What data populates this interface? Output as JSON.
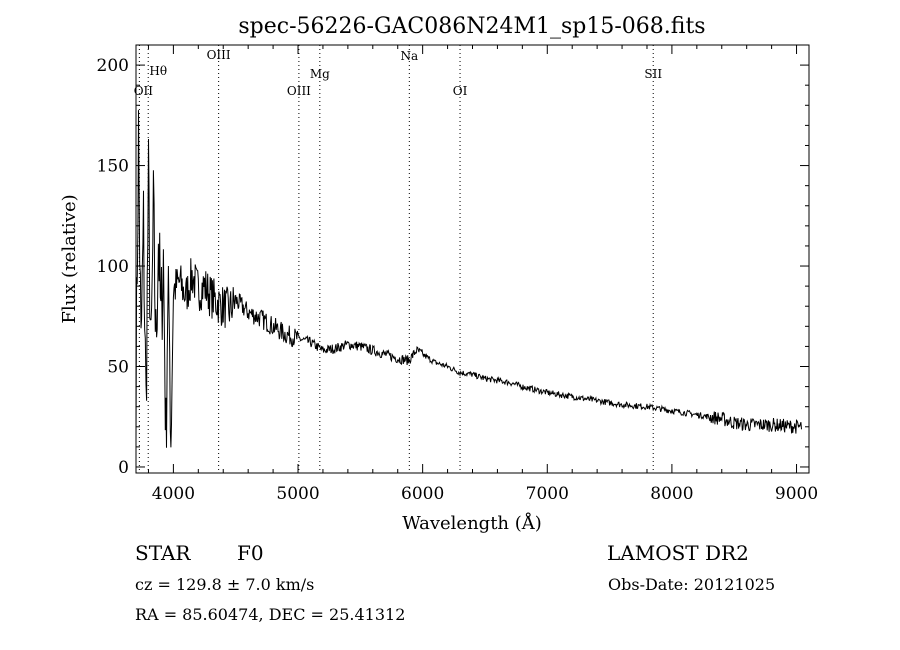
{
  "chart_data": {
    "type": "line",
    "title": "spec-56226-GAC086N24M1_sp15-068.fits",
    "xlabel": "Wavelength (Å)",
    "ylabel": "Flux (relative)",
    "xlim": [
      3700,
      9100
    ],
    "ylim": [
      -3,
      210
    ],
    "x_ticks": [
      4000,
      5000,
      6000,
      7000,
      8000,
      9000
    ],
    "x_tick_labels": [
      "4000",
      "5000",
      "6000",
      "7000",
      "8000",
      "9000"
    ],
    "y_ticks": [
      0,
      50,
      100,
      150,
      200
    ],
    "y_tick_labels": [
      "0",
      "50",
      "100",
      "150",
      "200"
    ],
    "spectral_lines": [
      {
        "label": "OII",
        "x": 3727
      },
      {
        "label": "Hθ",
        "x": 3798
      },
      {
        "label": "OIII",
        "x": 4363
      },
      {
        "label": "OIII",
        "x": 5007
      },
      {
        "label": "Mg",
        "x": 5175
      },
      {
        "label": "Na",
        "x": 5893
      },
      {
        "label": "OI",
        "x": 6300
      },
      {
        "label": "SII",
        "x": 7850
      }
    ],
    "series": [
      {
        "name": "flux",
        "x": [
          3700,
          3720,
          3740,
          3760,
          3780,
          3800,
          3820,
          3840,
          3860,
          3880,
          3900,
          3920,
          3940,
          3960,
          3980,
          4000,
          4050,
          4100,
          4150,
          4200,
          4250,
          4300,
          4350,
          4400,
          4450,
          4500,
          4600,
          4700,
          4800,
          4850,
          4900,
          5000,
          5100,
          5200,
          5300,
          5400,
          5500,
          5600,
          5700,
          5800,
          5890,
          5950,
          6000,
          6100,
          6200,
          6300,
          6400,
          6500,
          6600,
          6700,
          6800,
          7000,
          7200,
          7400,
          7600,
          7800,
          8000,
          8200,
          8400,
          8500,
          8600,
          8800,
          9000,
          9040
        ],
        "y": [
          40,
          165,
          55,
          120,
          30,
          140,
          50,
          125,
          60,
          115,
          70,
          105,
          12,
          100,
          15,
          88,
          92,
          85,
          95,
          88,
          90,
          85,
          82,
          80,
          78,
          83,
          77,
          74,
          70,
          68,
          66,
          64,
          62,
          58,
          59,
          61,
          60,
          58,
          56,
          54,
          53,
          58,
          56,
          52,
          50,
          47,
          46,
          44,
          43,
          42,
          40,
          37,
          35,
          33,
          31,
          30,
          28,
          26,
          24,
          22,
          21,
          21,
          20,
          20
        ]
      }
    ]
  },
  "info": {
    "object_class": "STAR",
    "subclass": "F0",
    "survey": "LAMOST DR2",
    "cz": "cz = 129.8 ± 7.0 km/s",
    "obs_date": "Obs-Date: 20121025",
    "coords": "RA =  85.60474, DEC =  25.41312"
  }
}
